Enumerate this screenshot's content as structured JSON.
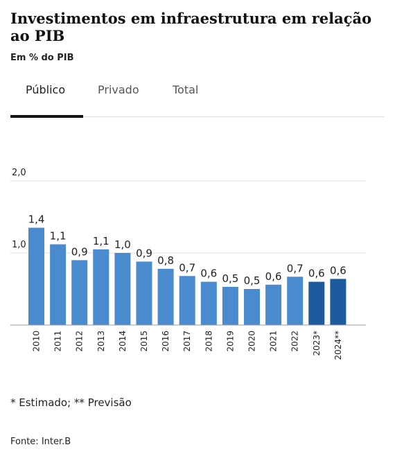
{
  "header": {
    "title": "Investimentos em infraestrutura em relação ao PIB",
    "subtitle": "Em % do PIB"
  },
  "tabs": [
    {
      "label": "Público",
      "active": true
    },
    {
      "label": "Privado",
      "active": false
    },
    {
      "label": "Total",
      "active": false
    }
  ],
  "chart_data": {
    "type": "bar",
    "categories": [
      "2010",
      "2011",
      "2012",
      "2013",
      "2014",
      "2015",
      "2016",
      "2017",
      "2018",
      "2019",
      "2020",
      "2021",
      "2022",
      "2023*",
      "2024**"
    ],
    "values": [
      1.35,
      1.12,
      0.9,
      1.05,
      1.0,
      0.88,
      0.78,
      0.68,
      0.6,
      0.53,
      0.5,
      0.56,
      0.67,
      0.6,
      0.64
    ],
    "data_labels": [
      "1,4",
      "1,1",
      "0,9",
      "1,1",
      "1,0",
      "0,9",
      "0,8",
      "0,7",
      "0,6",
      "0,5",
      "0,5",
      "0,6",
      "0,7",
      "0,6",
      "0,6"
    ],
    "highlighted": [
      "2023*",
      "2024**"
    ],
    "ylim": [
      0,
      2.0
    ],
    "yticks": [
      {
        "value": 1.0,
        "label": "1,0"
      },
      {
        "value": 2.0,
        "label": "2,0"
      }
    ],
    "grid": true,
    "colors": {
      "bar": "#4a8bcf",
      "bar_highlight": "#1c5b9e",
      "grid": "#dddddd",
      "baseline": "#999999"
    }
  },
  "footnote": "* Estimado; ** Previsão",
  "source": "Fonte: Inter.B"
}
